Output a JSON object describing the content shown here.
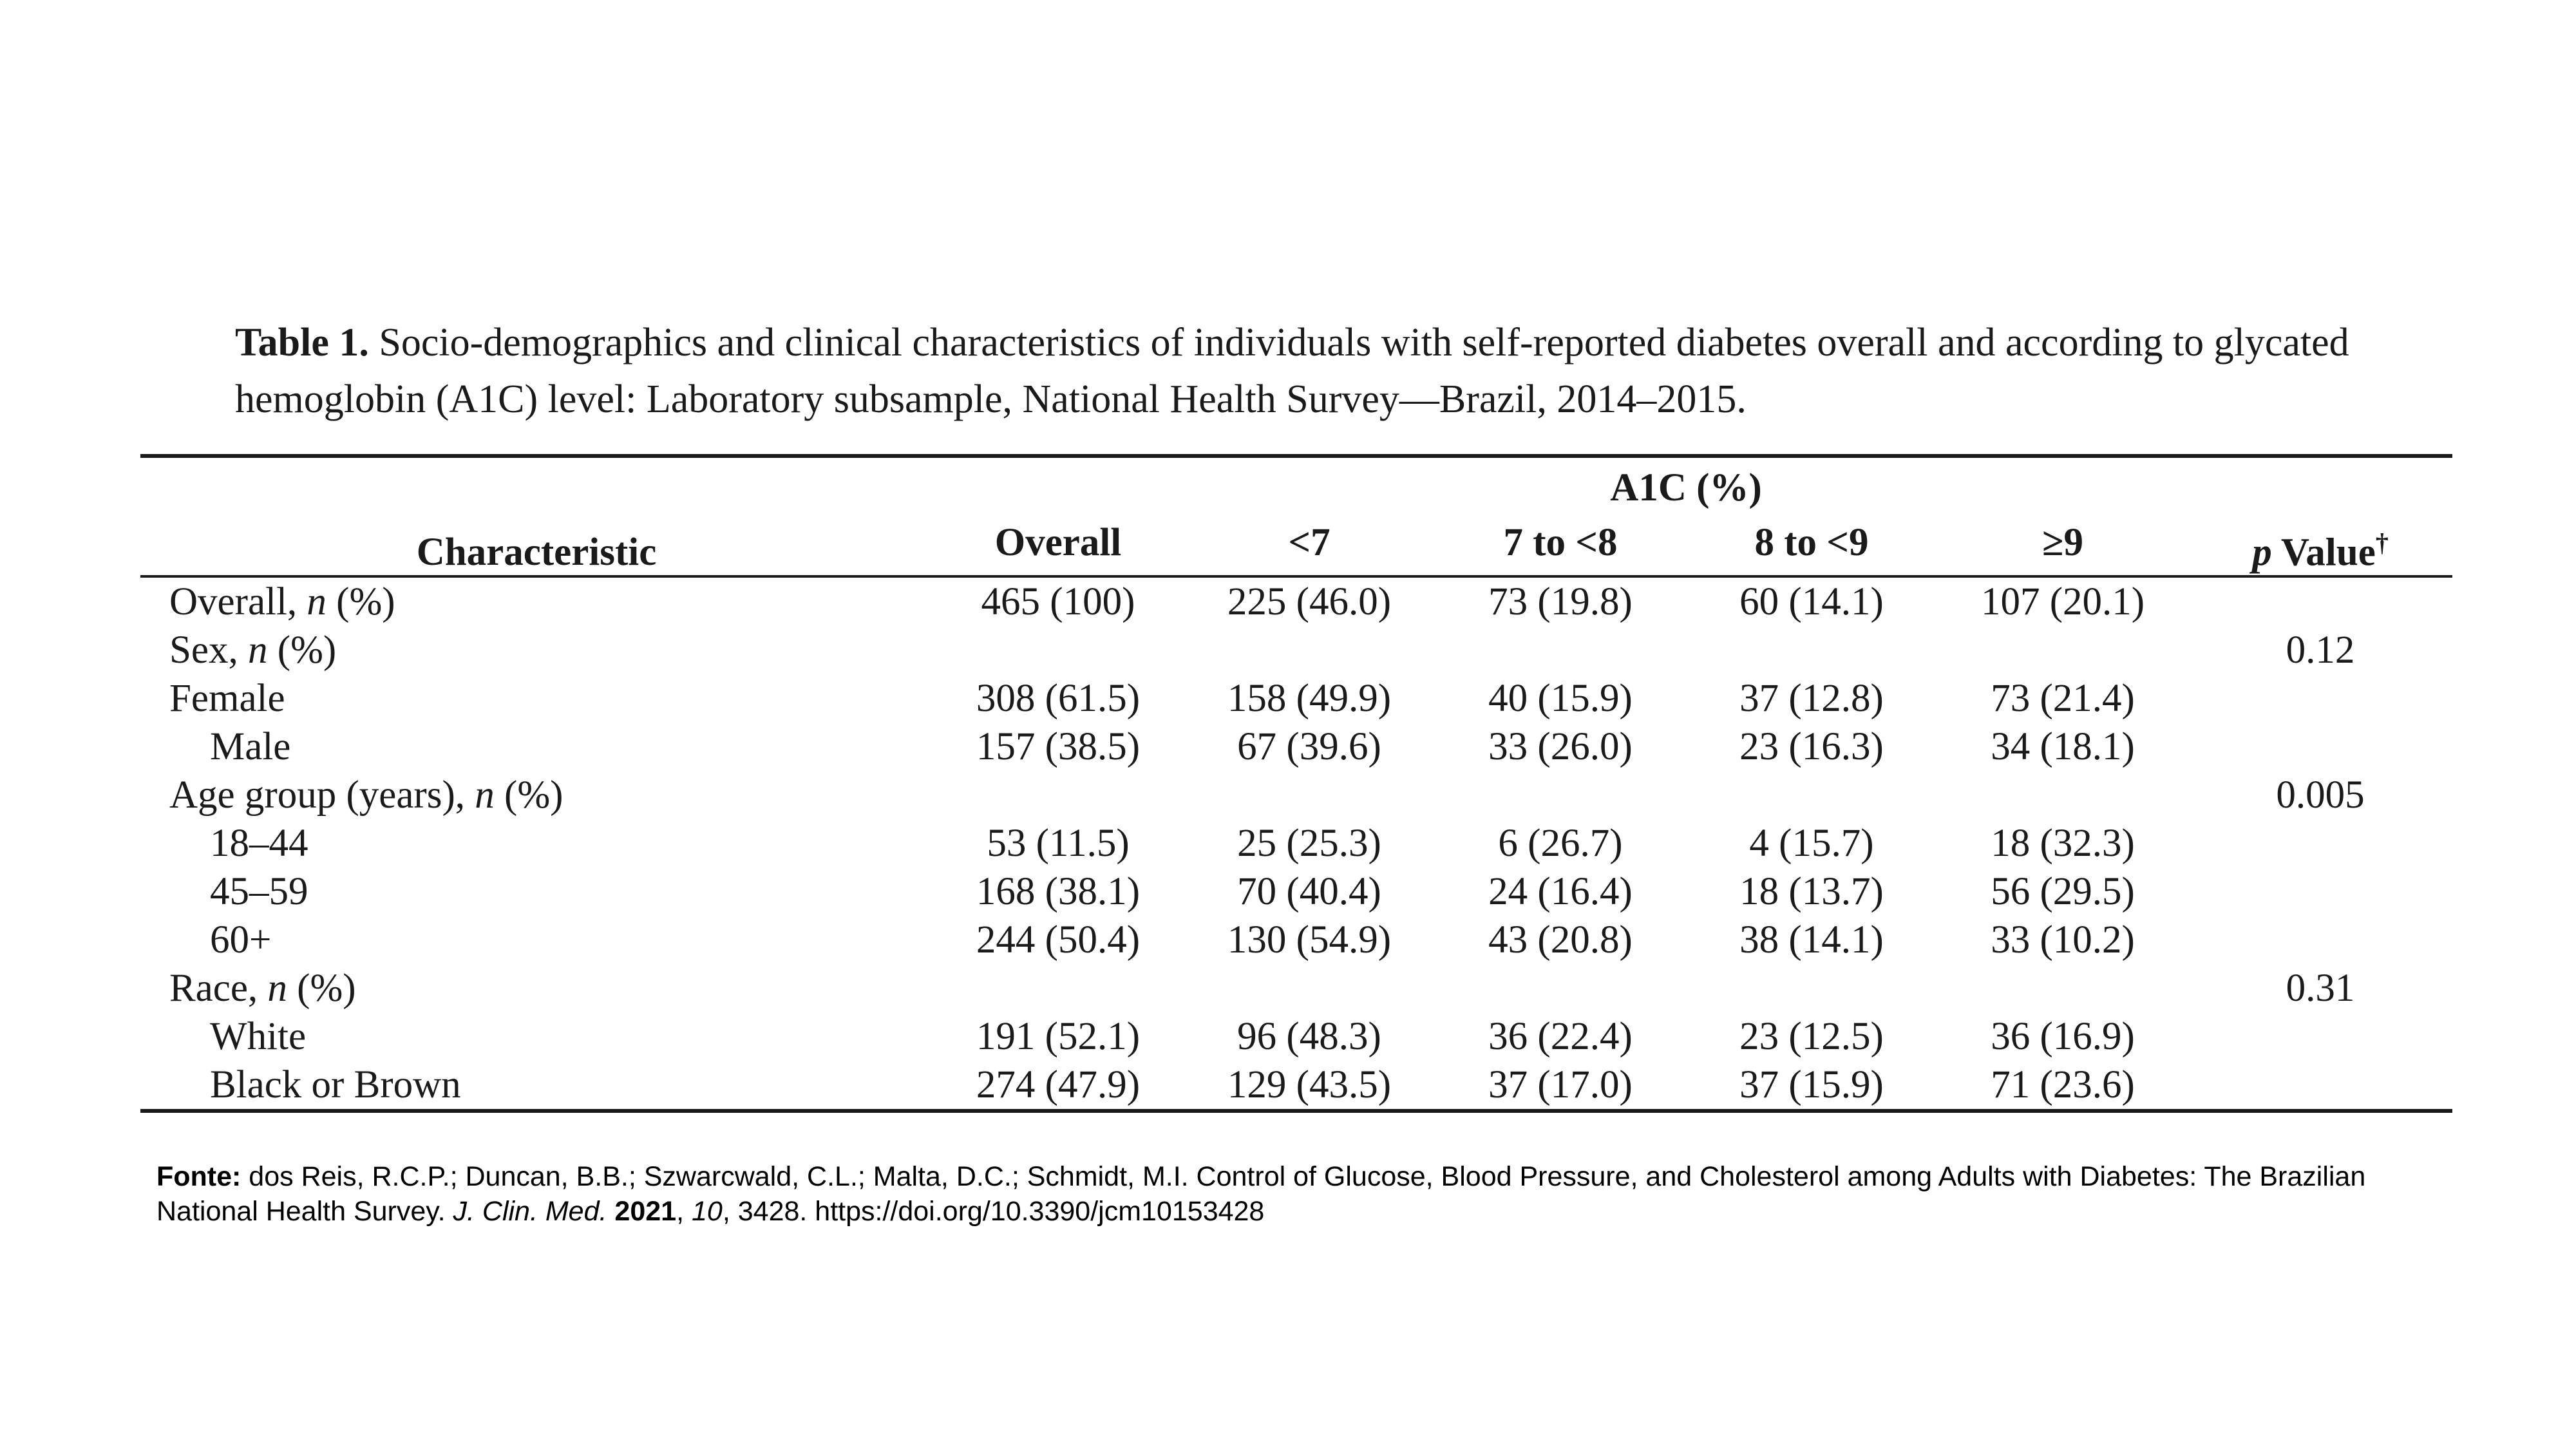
{
  "caption": {
    "label": "Table 1.",
    "text": "Socio-demographics and clinical characteristics of individuals with self-reported diabetes overall and according to glycated hemoglobin (A1C) level: Laboratory subsample, National Health Survey—Brazil, 2014–2015."
  },
  "table": {
    "header": {
      "characteristic": "Characteristic",
      "group": "A1C (%)",
      "overall": "Overall",
      "col_lt7": "<7",
      "col_7to8": "7 to <8",
      "col_8to9": "8 to <9",
      "col_ge9": "≥9",
      "pvalue_italic": "p",
      "pvalue_rest": " Value",
      "pvalue_mark": "†"
    },
    "rows": [
      {
        "label": "Overall,",
        "unit": "n",
        "unit_rest": " (%)",
        "overall": "465 (100)",
        "lt7": "225 (46.0)",
        "r7to8": "73 (19.8)",
        "r8to9": "60 (14.1)",
        "ge9": "107 (20.1)",
        "p": ""
      },
      {
        "label": "Sex,",
        "unit": "n",
        "unit_rest": " (%)",
        "overall": "",
        "lt7": "",
        "r7to8": "",
        "r8to9": "",
        "ge9": "",
        "p": "0.12"
      },
      {
        "label": "Female",
        "overall": "308 (61.5)",
        "lt7": "158 (49.9)",
        "r7to8": "40 (15.9)",
        "r8to9": "37 (12.8)",
        "ge9": "73 (21.4)",
        "p": ""
      },
      {
        "label": "Male",
        "overall": "157 (38.5)",
        "lt7": "67 (39.6)",
        "r7to8": "33 (26.0)",
        "r8to9": "23 (16.3)",
        "ge9": "34 (18.1)",
        "p": ""
      },
      {
        "label": "Age group (years),",
        "unit": "n",
        "unit_rest": " (%)",
        "overall": "",
        "lt7": "",
        "r7to8": "",
        "r8to9": "",
        "ge9": "",
        "p": "0.005"
      },
      {
        "label": "18–44",
        "overall": "53 (11.5)",
        "lt7": "25 (25.3)",
        "r7to8": "6 (26.7)",
        "r8to9": "4 (15.7)",
        "ge9": "18 (32.3)",
        "p": ""
      },
      {
        "label": "45–59",
        "overall": "168 (38.1)",
        "lt7": "70 (40.4)",
        "r7to8": "24 (16.4)",
        "r8to9": "18 (13.7)",
        "ge9": "56 (29.5)",
        "p": ""
      },
      {
        "label": "60+",
        "overall": "244 (50.4)",
        "lt7": "130 (54.9)",
        "r7to8": "43 (20.8)",
        "r8to9": "38 (14.1)",
        "ge9": "33 (10.2)",
        "p": ""
      },
      {
        "label": "Race,",
        "unit": "n",
        "unit_rest": " (%)",
        "overall": "",
        "lt7": "",
        "r7to8": "",
        "r8to9": "",
        "ge9": "",
        "p": "0.31"
      },
      {
        "label": "White",
        "overall": "191 (52.1)",
        "lt7": "96 (48.3)",
        "r7to8": "36 (22.4)",
        "r8to9": "23 (12.5)",
        "ge9": "36 (16.9)",
        "p": ""
      },
      {
        "label": "Black or Brown",
        "overall": "274 (47.9)",
        "lt7": "129 (43.5)",
        "r7to8": "37 (17.0)",
        "r8to9": "37 (15.9)",
        "ge9": "71 (23.6)",
        "p": ""
      }
    ]
  },
  "footer": {
    "fonte": "Fonte:",
    "authors": " dos Reis, R.C.P.; Duncan, B.B.; Szwarcwald, C.L.; Malta, D.C.; Schmidt, M.I. Control of Glucose, Blood Pressure, and Cholesterol among Adults with Diabetes: The Brazilian National Health Survey. ",
    "journal": "J. Clin. Med.",
    "year": "2021",
    "volume": "10",
    "rest": ", 3428. https://doi.org/10.3390/jcm10153428"
  }
}
